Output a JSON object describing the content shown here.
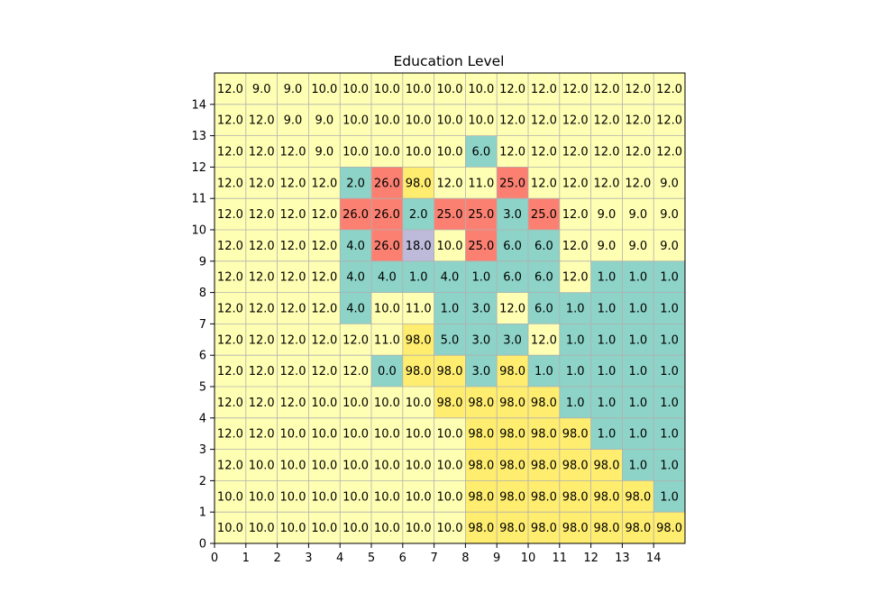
{
  "chart_data": {
    "type": "heatmap",
    "title": "Education Level",
    "xlabel": "",
    "ylabel": "",
    "xlim": [
      0,
      15
    ],
    "ylim": [
      0,
      15
    ],
    "x_ticks": [
      0,
      1,
      2,
      3,
      4,
      5,
      6,
      7,
      8,
      9,
      10,
      11,
      12,
      13,
      14
    ],
    "y_ticks": [
      0,
      1,
      2,
      3,
      4,
      5,
      6,
      7,
      8,
      9,
      10,
      11,
      12,
      13,
      14
    ],
    "grid": true,
    "value_colors": {
      "1.0": "#8dd3c7",
      "2.0": "#8dd3c7",
      "3.0": "#8dd3c7",
      "4.0": "#8dd3c7",
      "5.0": "#8dd3c7",
      "6.0": "#8dd3c7",
      "0.0": "#8dd3c7",
      "9.0": "#ffffb3",
      "10.0": "#ffffb3",
      "11.0": "#ffffb3",
      "12.0": "#ffffb3",
      "18.0": "#bebada",
      "25.0": "#fb8072",
      "26.0": "#fb8072",
      "98.0": "#ffed6f"
    },
    "values": [
      [
        10,
        10,
        10,
        10,
        10,
        10,
        10,
        10,
        98,
        98,
        98,
        98,
        98,
        98,
        98
      ],
      [
        10,
        10,
        10,
        10,
        10,
        10,
        10,
        10,
        98,
        98,
        98,
        98,
        98,
        98,
        1
      ],
      [
        12,
        10,
        10,
        10,
        10,
        10,
        10,
        10,
        98,
        98,
        98,
        98,
        98,
        1,
        1
      ],
      [
        12,
        12,
        10,
        10,
        10,
        10,
        10,
        10,
        98,
        98,
        98,
        98,
        1,
        1,
        1
      ],
      [
        12,
        12,
        12,
        10,
        10,
        10,
        10,
        98,
        98,
        98,
        98,
        1,
        1,
        1,
        1
      ],
      [
        12,
        12,
        12,
        12,
        12,
        0,
        98,
        98,
        3,
        98,
        1,
        1,
        1,
        1,
        1
      ],
      [
        12,
        12,
        12,
        12,
        12,
        11,
        98,
        5,
        3,
        3,
        12,
        1,
        1,
        1,
        1
      ],
      [
        12,
        12,
        12,
        12,
        4,
        10,
        11,
        1,
        3,
        12,
        6,
        1,
        1,
        1,
        1
      ],
      [
        12,
        12,
        12,
        12,
        4,
        4,
        1,
        4,
        1,
        6,
        6,
        12,
        1,
        1,
        1
      ],
      [
        12,
        12,
        12,
        12,
        4,
        26,
        18,
        10,
        25,
        6,
        6,
        12,
        9,
        9,
        9
      ],
      [
        12,
        12,
        12,
        12,
        26,
        26,
        2,
        25,
        25,
        3,
        25,
        12,
        9,
        9,
        9
      ],
      [
        12,
        12,
        12,
        12,
        2,
        26,
        98,
        12,
        11,
        25,
        12,
        12,
        12,
        12,
        9
      ],
      [
        12,
        12,
        12,
        9,
        10,
        10,
        10,
        10,
        6,
        12,
        12,
        12,
        12,
        12,
        12
      ],
      [
        12,
        12,
        9,
        9,
        10,
        10,
        10,
        10,
        10,
        12,
        12,
        12,
        12,
        12,
        12
      ],
      [
        12,
        9,
        9,
        10,
        10,
        10,
        10,
        10,
        10,
        12,
        12,
        12,
        12,
        12,
        12
      ]
    ]
  }
}
